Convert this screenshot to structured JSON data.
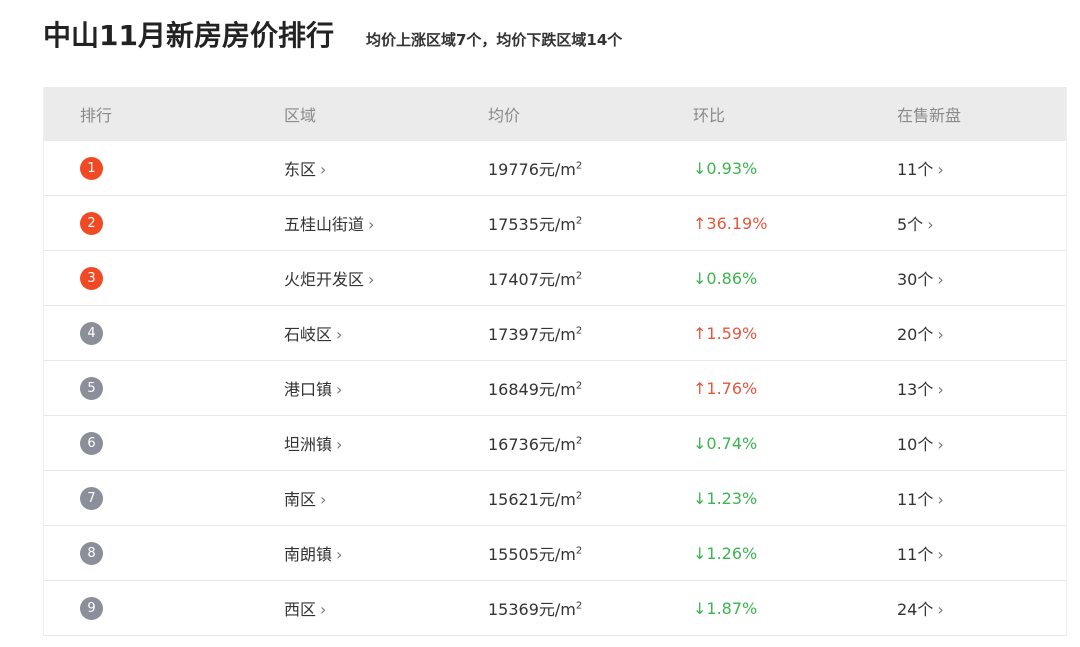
{
  "title": "中山11月新房房价排行",
  "subtitle": "均价上涨区域7个，均价下跌区域14个",
  "colors": {
    "top_badge": "#f04a24",
    "other_badge": "#8a8f99",
    "up": "#e8553d",
    "down": "#3cb550"
  },
  "headers": [
    "排行",
    "区域",
    "均价",
    "环比",
    "在售新盘"
  ],
  "price_unit": "元/m",
  "price_unit_sup": "2",
  "rows": [
    {
      "rank": "1",
      "region": "东区",
      "price": "19776",
      "direction": "down",
      "change": "↓0.93%",
      "count": "11个"
    },
    {
      "rank": "2",
      "region": "五桂山街道",
      "price": "17535",
      "direction": "up",
      "change": "↑36.19%",
      "count": "5个"
    },
    {
      "rank": "3",
      "region": "火炬开发区",
      "price": "17407",
      "direction": "down",
      "change": "↓0.86%",
      "count": "30个"
    },
    {
      "rank": "4",
      "region": "石岐区",
      "price": "17397",
      "direction": "up",
      "change": "↑1.59%",
      "count": "20个"
    },
    {
      "rank": "5",
      "region": "港口镇",
      "price": "16849",
      "direction": "up",
      "change": "↑1.76%",
      "count": "13个"
    },
    {
      "rank": "6",
      "region": "坦洲镇",
      "price": "16736",
      "direction": "down",
      "change": "↓0.74%",
      "count": "10个"
    },
    {
      "rank": "7",
      "region": "南区",
      "price": "15621",
      "direction": "down",
      "change": "↓1.23%",
      "count": "11个"
    },
    {
      "rank": "8",
      "region": "南朗镇",
      "price": "15505",
      "direction": "down",
      "change": "↓1.26%",
      "count": "11个"
    },
    {
      "rank": "9",
      "region": "西区",
      "price": "15369",
      "direction": "down",
      "change": "↓1.87%",
      "count": "24个"
    }
  ]
}
